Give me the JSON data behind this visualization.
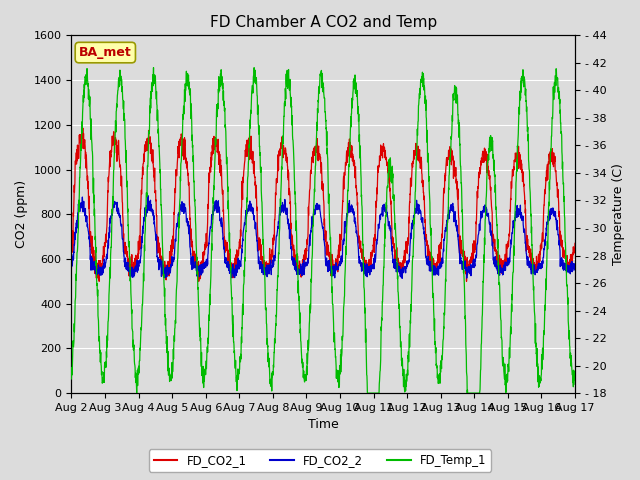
{
  "title": "FD Chamber A CO2 and Temp",
  "xlabel": "Time",
  "ylabel_left": "CO2 (ppm)",
  "ylabel_right": "Temperature (C)",
  "annotation": "BA_met",
  "ylim_left": [
    0,
    1600
  ],
  "ylim_right": [
    18,
    44
  ],
  "yticks_left": [
    0,
    200,
    400,
    600,
    800,
    1000,
    1200,
    1400,
    1600
  ],
  "yticks_right": [
    18,
    20,
    22,
    24,
    26,
    28,
    30,
    32,
    34,
    36,
    38,
    40,
    42,
    44
  ],
  "background_color": "#dcdcdc",
  "fig_facecolor": "#dcdcdc",
  "line_color_co2_1": "#dd0000",
  "line_color_co2_2": "#0000cc",
  "line_color_temp": "#00bb00",
  "legend_labels": [
    "FD_CO2_1",
    "FD_CO2_2",
    "FD_Temp_1"
  ],
  "grid_color": "#ffffff",
  "title_fontsize": 11,
  "axis_fontsize": 9,
  "tick_fontsize": 8,
  "annotation_facecolor": "#ffffaa",
  "annotation_edgecolor": "#999900",
  "annotation_textcolor": "#bb0000"
}
